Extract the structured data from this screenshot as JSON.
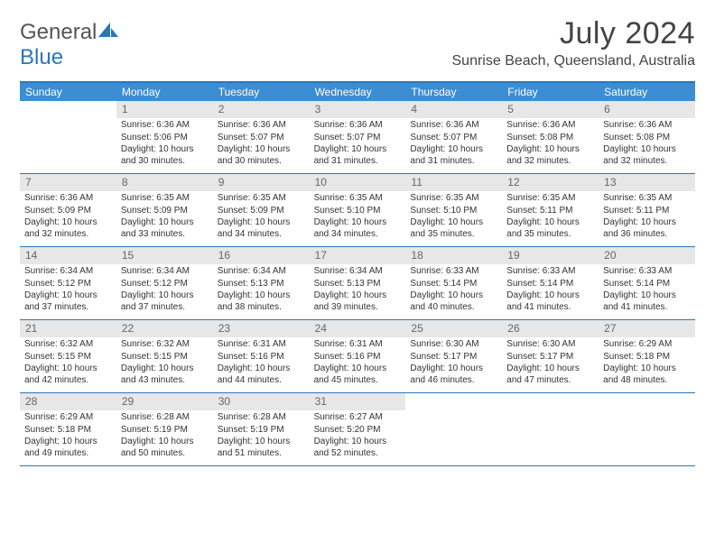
{
  "logo": {
    "text1": "General",
    "text2": "Blue"
  },
  "title": "July 2024",
  "location": "Sunrise Beach, Queensland, Australia",
  "colors": {
    "header_blue": "#3b8dd4",
    "border_blue": "#2a77b8",
    "daynum_bg": "#e7e7e7",
    "text": "#333333"
  },
  "day_headers": [
    "Sunday",
    "Monday",
    "Tuesday",
    "Wednesday",
    "Thursday",
    "Friday",
    "Saturday"
  ],
  "weeks": [
    [
      {
        "day": "",
        "sunrise": "",
        "sunset": "",
        "daylight": ""
      },
      {
        "day": "1",
        "sunrise": "Sunrise: 6:36 AM",
        "sunset": "Sunset: 5:06 PM",
        "daylight": "Daylight: 10 hours and 30 minutes."
      },
      {
        "day": "2",
        "sunrise": "Sunrise: 6:36 AM",
        "sunset": "Sunset: 5:07 PM",
        "daylight": "Daylight: 10 hours and 30 minutes."
      },
      {
        "day": "3",
        "sunrise": "Sunrise: 6:36 AM",
        "sunset": "Sunset: 5:07 PM",
        "daylight": "Daylight: 10 hours and 31 minutes."
      },
      {
        "day": "4",
        "sunrise": "Sunrise: 6:36 AM",
        "sunset": "Sunset: 5:07 PM",
        "daylight": "Daylight: 10 hours and 31 minutes."
      },
      {
        "day": "5",
        "sunrise": "Sunrise: 6:36 AM",
        "sunset": "Sunset: 5:08 PM",
        "daylight": "Daylight: 10 hours and 32 minutes."
      },
      {
        "day": "6",
        "sunrise": "Sunrise: 6:36 AM",
        "sunset": "Sunset: 5:08 PM",
        "daylight": "Daylight: 10 hours and 32 minutes."
      }
    ],
    [
      {
        "day": "7",
        "sunrise": "Sunrise: 6:36 AM",
        "sunset": "Sunset: 5:09 PM",
        "daylight": "Daylight: 10 hours and 32 minutes."
      },
      {
        "day": "8",
        "sunrise": "Sunrise: 6:35 AM",
        "sunset": "Sunset: 5:09 PM",
        "daylight": "Daylight: 10 hours and 33 minutes."
      },
      {
        "day": "9",
        "sunrise": "Sunrise: 6:35 AM",
        "sunset": "Sunset: 5:09 PM",
        "daylight": "Daylight: 10 hours and 34 minutes."
      },
      {
        "day": "10",
        "sunrise": "Sunrise: 6:35 AM",
        "sunset": "Sunset: 5:10 PM",
        "daylight": "Daylight: 10 hours and 34 minutes."
      },
      {
        "day": "11",
        "sunrise": "Sunrise: 6:35 AM",
        "sunset": "Sunset: 5:10 PM",
        "daylight": "Daylight: 10 hours and 35 minutes."
      },
      {
        "day": "12",
        "sunrise": "Sunrise: 6:35 AM",
        "sunset": "Sunset: 5:11 PM",
        "daylight": "Daylight: 10 hours and 35 minutes."
      },
      {
        "day": "13",
        "sunrise": "Sunrise: 6:35 AM",
        "sunset": "Sunset: 5:11 PM",
        "daylight": "Daylight: 10 hours and 36 minutes."
      }
    ],
    [
      {
        "day": "14",
        "sunrise": "Sunrise: 6:34 AM",
        "sunset": "Sunset: 5:12 PM",
        "daylight": "Daylight: 10 hours and 37 minutes."
      },
      {
        "day": "15",
        "sunrise": "Sunrise: 6:34 AM",
        "sunset": "Sunset: 5:12 PM",
        "daylight": "Daylight: 10 hours and 37 minutes."
      },
      {
        "day": "16",
        "sunrise": "Sunrise: 6:34 AM",
        "sunset": "Sunset: 5:13 PM",
        "daylight": "Daylight: 10 hours and 38 minutes."
      },
      {
        "day": "17",
        "sunrise": "Sunrise: 6:34 AM",
        "sunset": "Sunset: 5:13 PM",
        "daylight": "Daylight: 10 hours and 39 minutes."
      },
      {
        "day": "18",
        "sunrise": "Sunrise: 6:33 AM",
        "sunset": "Sunset: 5:14 PM",
        "daylight": "Daylight: 10 hours and 40 minutes."
      },
      {
        "day": "19",
        "sunrise": "Sunrise: 6:33 AM",
        "sunset": "Sunset: 5:14 PM",
        "daylight": "Daylight: 10 hours and 41 minutes."
      },
      {
        "day": "20",
        "sunrise": "Sunrise: 6:33 AM",
        "sunset": "Sunset: 5:14 PM",
        "daylight": "Daylight: 10 hours and 41 minutes."
      }
    ],
    [
      {
        "day": "21",
        "sunrise": "Sunrise: 6:32 AM",
        "sunset": "Sunset: 5:15 PM",
        "daylight": "Daylight: 10 hours and 42 minutes."
      },
      {
        "day": "22",
        "sunrise": "Sunrise: 6:32 AM",
        "sunset": "Sunset: 5:15 PM",
        "daylight": "Daylight: 10 hours and 43 minutes."
      },
      {
        "day": "23",
        "sunrise": "Sunrise: 6:31 AM",
        "sunset": "Sunset: 5:16 PM",
        "daylight": "Daylight: 10 hours and 44 minutes."
      },
      {
        "day": "24",
        "sunrise": "Sunrise: 6:31 AM",
        "sunset": "Sunset: 5:16 PM",
        "daylight": "Daylight: 10 hours and 45 minutes."
      },
      {
        "day": "25",
        "sunrise": "Sunrise: 6:30 AM",
        "sunset": "Sunset: 5:17 PM",
        "daylight": "Daylight: 10 hours and 46 minutes."
      },
      {
        "day": "26",
        "sunrise": "Sunrise: 6:30 AM",
        "sunset": "Sunset: 5:17 PM",
        "daylight": "Daylight: 10 hours and 47 minutes."
      },
      {
        "day": "27",
        "sunrise": "Sunrise: 6:29 AM",
        "sunset": "Sunset: 5:18 PM",
        "daylight": "Daylight: 10 hours and 48 minutes."
      }
    ],
    [
      {
        "day": "28",
        "sunrise": "Sunrise: 6:29 AM",
        "sunset": "Sunset: 5:18 PM",
        "daylight": "Daylight: 10 hours and 49 minutes."
      },
      {
        "day": "29",
        "sunrise": "Sunrise: 6:28 AM",
        "sunset": "Sunset: 5:19 PM",
        "daylight": "Daylight: 10 hours and 50 minutes."
      },
      {
        "day": "30",
        "sunrise": "Sunrise: 6:28 AM",
        "sunset": "Sunset: 5:19 PM",
        "daylight": "Daylight: 10 hours and 51 minutes."
      },
      {
        "day": "31",
        "sunrise": "Sunrise: 6:27 AM",
        "sunset": "Sunset: 5:20 PM",
        "daylight": "Daylight: 10 hours and 52 minutes."
      },
      {
        "day": "",
        "sunrise": "",
        "sunset": "",
        "daylight": ""
      },
      {
        "day": "",
        "sunrise": "",
        "sunset": "",
        "daylight": ""
      },
      {
        "day": "",
        "sunrise": "",
        "sunset": "",
        "daylight": ""
      }
    ]
  ]
}
